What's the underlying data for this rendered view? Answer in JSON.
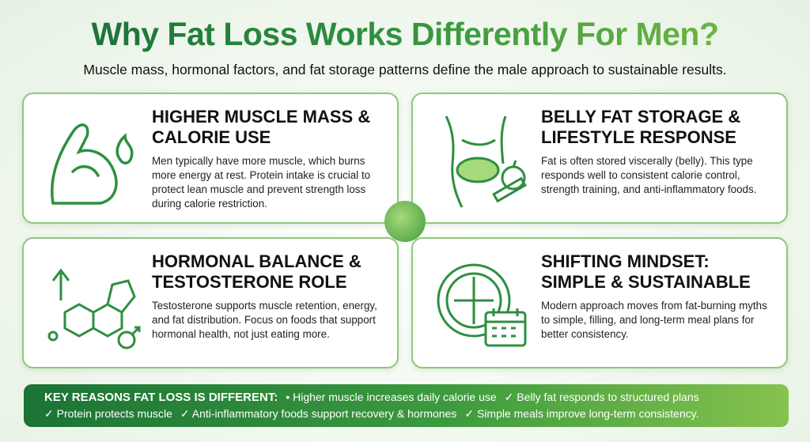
{
  "title": "Why Fat Loss Works Differently For Men?",
  "subtitle": "Muscle mass, hormonal factors, and fat storage patterns define the male approach to sustainable results.",
  "cards": [
    {
      "icon": "flexed-arm-flame-icon",
      "heading": "HIGHER MUSCLE MASS & CALORIE USE",
      "text": "Men typically have more muscle, which burns more energy at rest. Protein intake is crucial to protect lean muscle and prevent strength loss during calorie restriction."
    },
    {
      "icon": "torso-belly-apple-tape-icon",
      "heading": "BELLY FAT STORAGE & LIFESTYLE RESPONSE",
      "text": "Fat is often stored viscerally (belly). This type responds well to consistent calorie control, strength training, and anti-inflammatory foods."
    },
    {
      "icon": "testosterone-molecule-male-icon",
      "heading": "HORMONAL BALANCE & TESTOSTERONE ROLE",
      "text": "Testosterone supports muscle retention, energy, and fat distribution. Focus on foods that support hormonal health, not just eating more."
    },
    {
      "icon": "meal-plate-calendar-icon",
      "heading": "SHIFTING MINDSET: SIMPLE & SUSTAINABLE",
      "text": "Modern approach moves from fat-burning myths to simple, filling, and long-term meal plans for better consistency."
    }
  ],
  "banner": {
    "heading": "KEY REASONS FAT LOSS IS DIFFERENT:",
    "items": [
      "• Higher muscle increases daily calorie use",
      "✓ Belly fat responds to structured plans",
      "✓ Protein protects muscle",
      "✓ Anti-inflammatory foods support recovery & hormones",
      "✓ Simple meals improve long-term consistency."
    ]
  },
  "colors": {
    "dark_green": "#156b35",
    "light_green": "#7cc043",
    "border": "#8cc97a"
  }
}
